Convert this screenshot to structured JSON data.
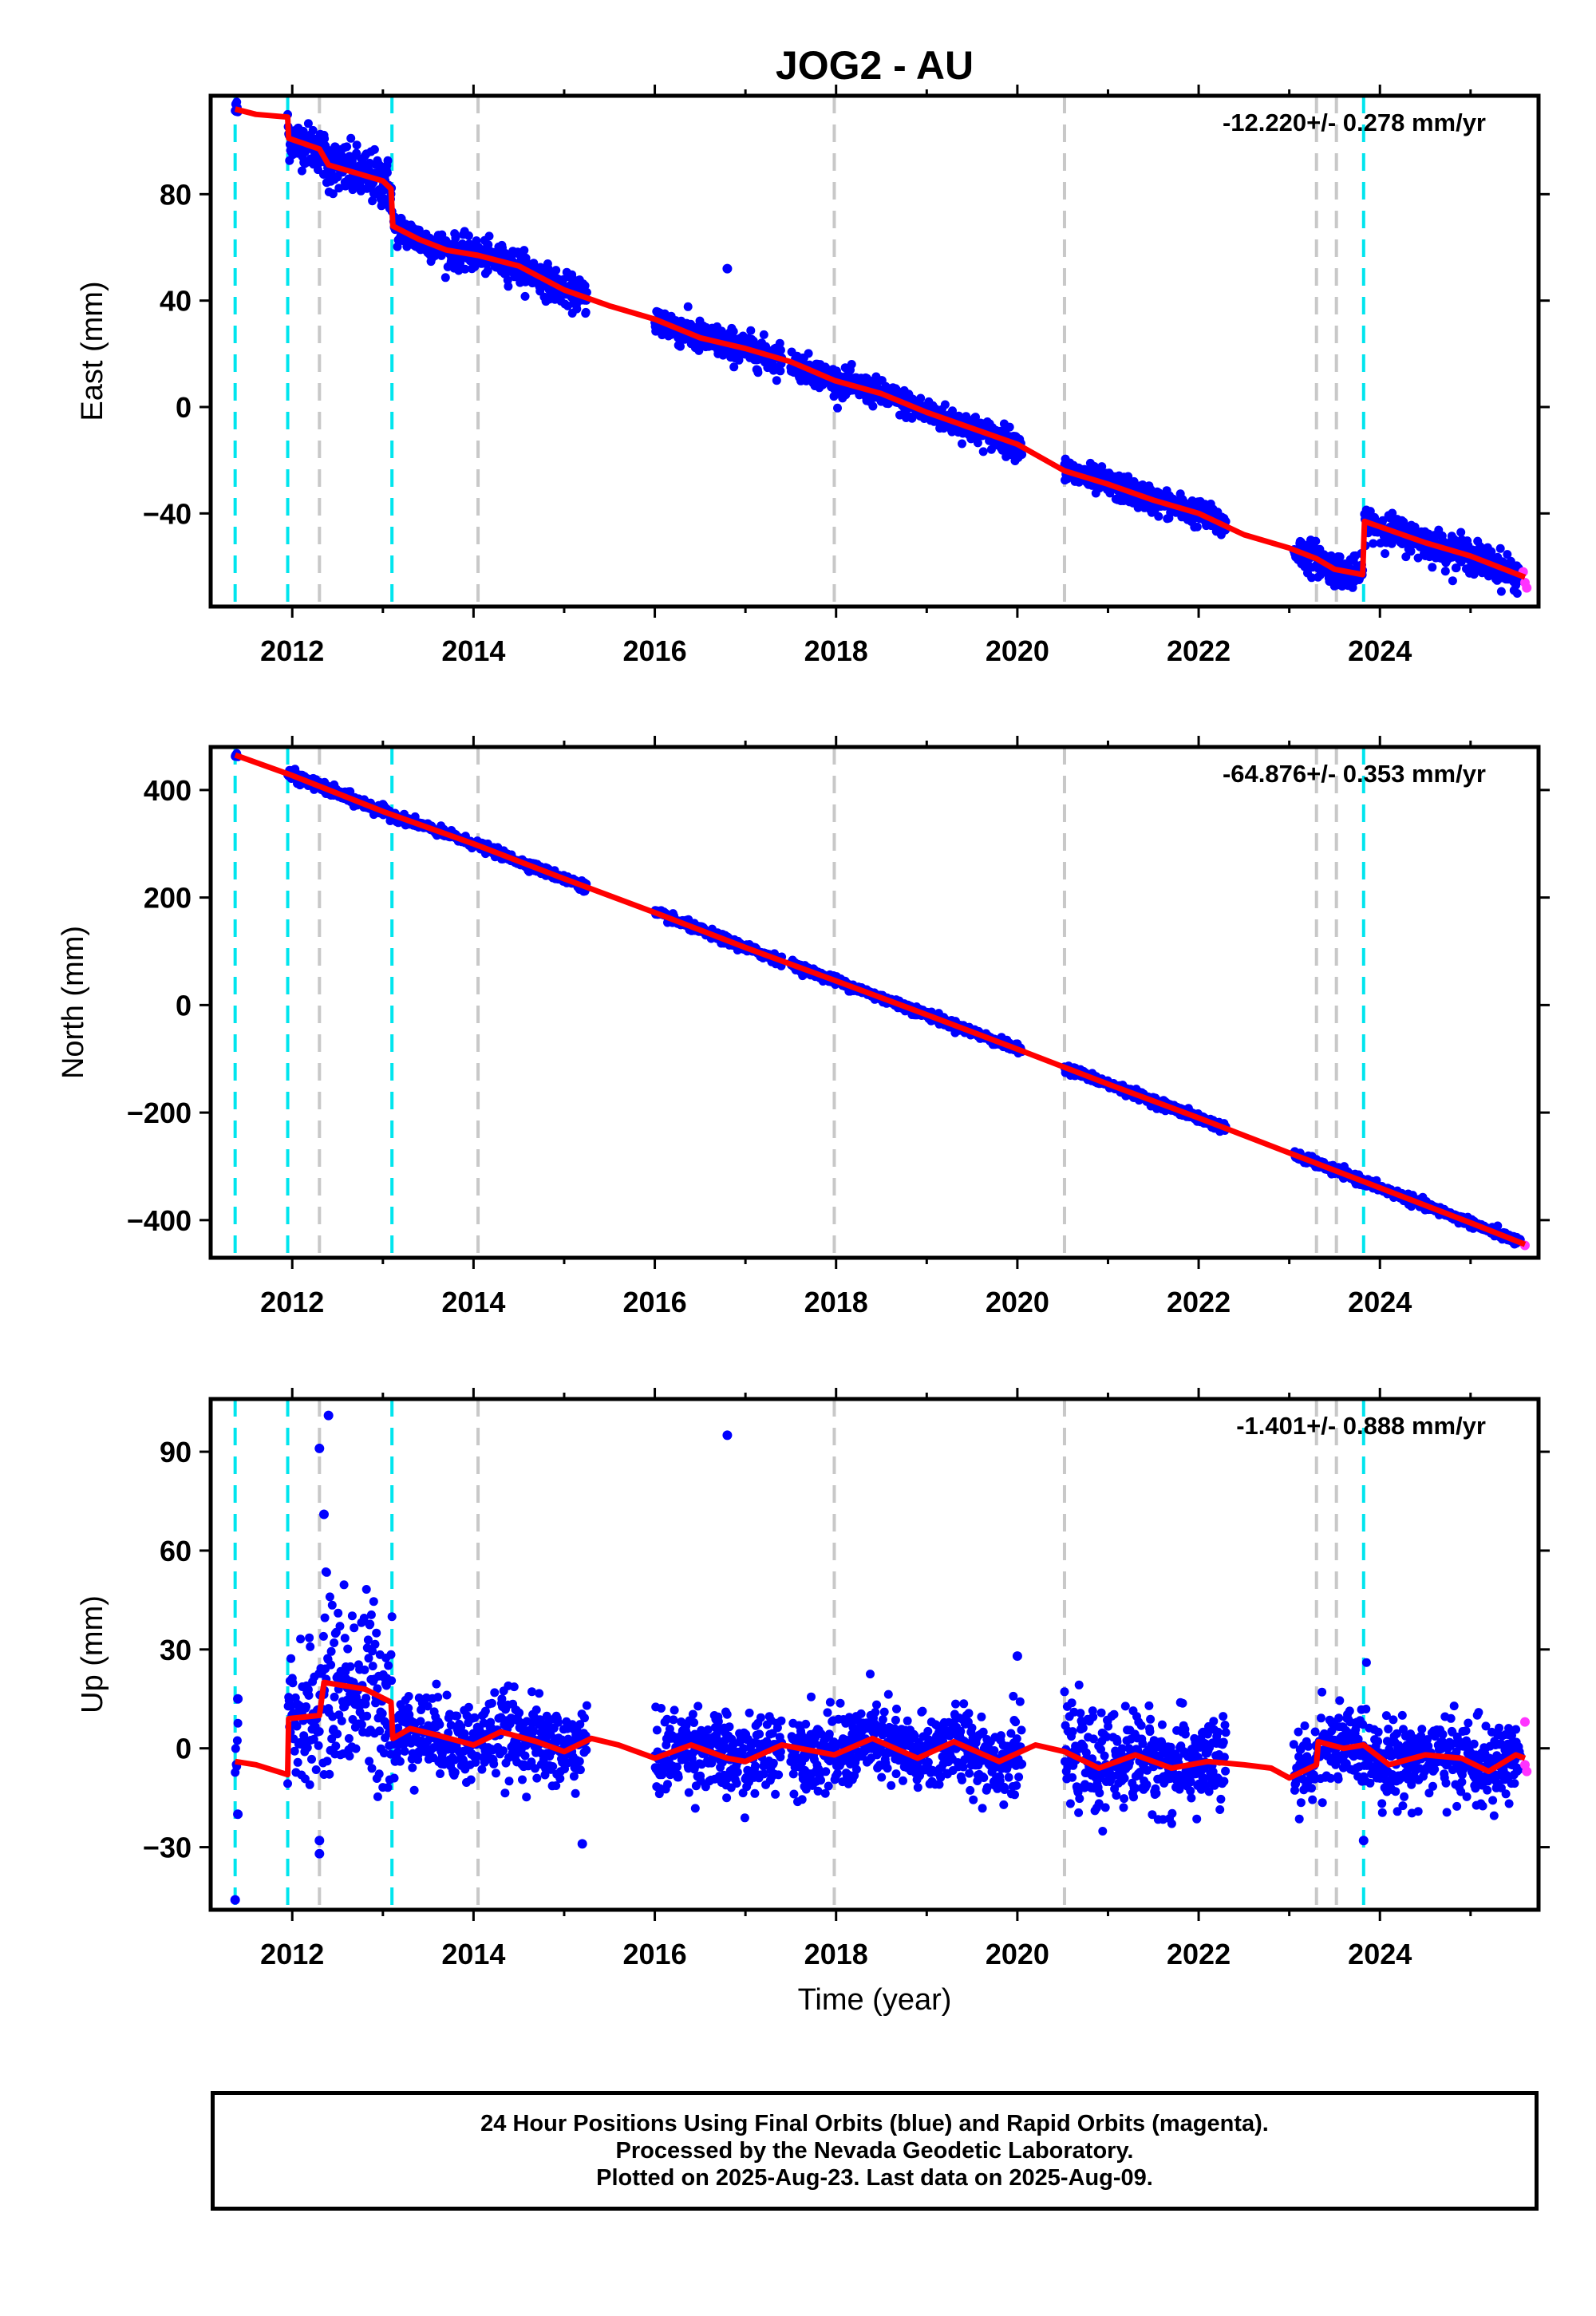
{
  "title": "JOG2 - AU",
  "xlabel": "Time (year)",
  "caption": {
    "line1": "24 Hour Positions Using Final Orbits (blue) and Rapid Orbits (magenta).",
    "line2": "Processed by the Nevada Geodetic Laboratory.",
    "line3": "Plotted on 2025-Aug-23. Last data on 2025-Aug-09."
  },
  "colors": {
    "final_orbits": "#0000ff",
    "rapid_orbits": "#ff33ff",
    "model": "#ff0000",
    "equipment_change": "#00e5ee",
    "other_event": "#c8c8c8"
  },
  "chart_data": [
    {
      "type": "scatter",
      "ylabel": "East (mm)",
      "rate_label": "-12.220+/- 0.278 mm/yr",
      "xlim": [
        2011.1,
        2025.75
      ],
      "ylim": [
        -75,
        117
      ],
      "yticks": [
        -40,
        0,
        40,
        80
      ],
      "xticks": [
        2012,
        2014,
        2016,
        2018,
        2020,
        2022,
        2024
      ],
      "cyan_lines": [
        2011.37,
        2011.95,
        2013.1,
        2023.82
      ],
      "gray_lines": [
        2012.3,
        2014.05,
        2017.98,
        2020.52,
        2023.3,
        2023.52
      ],
      "outliers": [
        [
          2016.8,
          52
        ]
      ],
      "model": [
        [
          2011.37,
          112
        ],
        [
          2011.6,
          110
        ],
        [
          2011.95,
          109
        ],
        [
          2011.96,
          101
        ],
        [
          2012.3,
          97
        ],
        [
          2012.4,
          91
        ],
        [
          2012.7,
          88
        ],
        [
          2013.0,
          85
        ],
        [
          2013.09,
          82
        ],
        [
          2013.11,
          68
        ],
        [
          2013.4,
          63
        ],
        [
          2013.7,
          59
        ],
        [
          2014.05,
          57
        ],
        [
          2014.5,
          53
        ],
        [
          2015.0,
          44
        ],
        [
          2015.5,
          38
        ],
        [
          2016.0,
          33
        ],
        [
          2016.5,
          26
        ],
        [
          2017.0,
          22
        ],
        [
          2017.5,
          17
        ],
        [
          2017.98,
          10
        ],
        [
          2018.5,
          5
        ],
        [
          2019.0,
          -2
        ],
        [
          2019.5,
          -8
        ],
        [
          2020.0,
          -14
        ],
        [
          2020.52,
          -24
        ],
        [
          2021.0,
          -29
        ],
        [
          2021.5,
          -35
        ],
        [
          2022.0,
          -40
        ],
        [
          2022.5,
          -48
        ],
        [
          2023.0,
          -53
        ],
        [
          2023.3,
          -57
        ],
        [
          2023.5,
          -61
        ],
        [
          2023.81,
          -63
        ],
        [
          2023.83,
          -43
        ],
        [
          2024.0,
          -45
        ],
        [
          2024.5,
          -51
        ],
        [
          2025.0,
          -56
        ],
        [
          2025.6,
          -64
        ]
      ],
      "segments": [
        {
          "start": 2011.37,
          "end": 2011.4,
          "spread": 2
        },
        {
          "start": 2011.95,
          "end": 2012.35,
          "spread": 4
        },
        {
          "start": 2012.35,
          "end": 2013.1,
          "spread": 5
        },
        {
          "start": 2013.12,
          "end": 2015.25,
          "spread": 3
        },
        {
          "start": 2016.0,
          "end": 2017.4,
          "spread": 3
        },
        {
          "start": 2017.5,
          "end": 2020.05,
          "spread": 2.5
        },
        {
          "start": 2020.52,
          "end": 2022.3,
          "spread": 2.5
        },
        {
          "start": 2023.05,
          "end": 2023.81,
          "spread": 3
        },
        {
          "start": 2023.83,
          "end": 2025.55,
          "spread": 3
        }
      ],
      "rapid": [
        [
          2025.58,
          -62
        ],
        [
          2025.6,
          -66
        ],
        [
          2025.62,
          -68
        ]
      ]
    },
    {
      "type": "scatter",
      "ylabel": "North (mm)",
      "rate_label": "-64.876+/- 0.353 mm/yr",
      "xlim": [
        2011.1,
        2025.75
      ],
      "ylim": [
        -470,
        480
      ],
      "yticks": [
        -400,
        -200,
        0,
        200,
        400
      ],
      "xticks": [
        2012,
        2014,
        2016,
        2018,
        2020,
        2022,
        2024
      ],
      "cyan_lines": [
        2011.37,
        2011.95,
        2013.1,
        2023.82
      ],
      "gray_lines": [
        2012.3,
        2014.05,
        2017.98,
        2020.52,
        2023.3,
        2023.52
      ],
      "outliers": [],
      "model": [
        [
          2011.37,
          465
        ],
        [
          2012.0,
          427
        ],
        [
          2013.0,
          360
        ],
        [
          2014.0,
          300
        ],
        [
          2015.0,
          235
        ],
        [
          2016.0,
          172
        ],
        [
          2017.0,
          107
        ],
        [
          2018.0,
          45
        ],
        [
          2019.0,
          -18
        ],
        [
          2020.0,
          -82
        ],
        [
          2021.0,
          -147
        ],
        [
          2022.0,
          -210
        ],
        [
          2023.0,
          -275
        ],
        [
          2024.0,
          -340
        ],
        [
          2025.0,
          -405
        ],
        [
          2025.6,
          -445
        ]
      ],
      "segments": [
        {
          "start": 2011.37,
          "end": 2011.4,
          "spread": 3
        },
        {
          "start": 2011.95,
          "end": 2013.1,
          "spread": 5
        },
        {
          "start": 2013.12,
          "end": 2015.25,
          "spread": 4
        },
        {
          "start": 2016.0,
          "end": 2017.4,
          "spread": 4
        },
        {
          "start": 2017.5,
          "end": 2020.05,
          "spread": 4
        },
        {
          "start": 2020.52,
          "end": 2022.3,
          "spread": 4
        },
        {
          "start": 2023.05,
          "end": 2025.55,
          "spread": 4
        }
      ],
      "rapid": [
        [
          2025.6,
          -447
        ]
      ]
    },
    {
      "type": "scatter",
      "ylabel": "Up (mm)",
      "rate_label": "-1.401+/- 0.888 mm/yr",
      "xlim": [
        2011.1,
        2025.75
      ],
      "ylim": [
        -49,
        106
      ],
      "yticks": [
        -30,
        0,
        30,
        60,
        90
      ],
      "xticks": [
        2012,
        2014,
        2016,
        2018,
        2020,
        2022,
        2024
      ],
      "cyan_lines": [
        2011.37,
        2011.95,
        2013.1,
        2023.82
      ],
      "gray_lines": [
        2012.3,
        2014.05,
        2017.98,
        2020.52,
        2023.3,
        2023.52
      ],
      "outliers": [
        [
          2016.8,
          95
        ],
        [
          2012.4,
          101
        ],
        [
          2012.3,
          91
        ],
        [
          2012.35,
          71
        ],
        [
          2011.37,
          -46
        ],
        [
          2011.4,
          -20
        ],
        [
          2011.4,
          15
        ],
        [
          2012.3,
          -32
        ],
        [
          2012.3,
          -28
        ],
        [
          2023.82,
          -28
        ],
        [
          2015.2,
          -29
        ],
        [
          2020.0,
          28
        ]
      ],
      "model": [
        [
          2011.37,
          -4
        ],
        [
          2011.6,
          -5
        ],
        [
          2011.95,
          -8
        ],
        [
          2011.96,
          9
        ],
        [
          2012.3,
          10
        ],
        [
          2012.35,
          20
        ],
        [
          2012.8,
          18
        ],
        [
          2013.09,
          14
        ],
        [
          2013.11,
          3
        ],
        [
          2013.3,
          6
        ],
        [
          2013.6,
          4
        ],
        [
          2014.0,
          1
        ],
        [
          2014.3,
          5
        ],
        [
          2014.7,
          2
        ],
        [
          2015.0,
          -1
        ],
        [
          2015.3,
          3
        ],
        [
          2015.6,
          1
        ],
        [
          2016.0,
          -3
        ],
        [
          2016.4,
          1
        ],
        [
          2016.8,
          -3
        ],
        [
          2017.0,
          -4
        ],
        [
          2017.4,
          1
        ],
        [
          2017.98,
          -2
        ],
        [
          2018.4,
          3
        ],
        [
          2018.9,
          -3
        ],
        [
          2019.3,
          2
        ],
        [
          2019.8,
          -4
        ],
        [
          2020.2,
          1
        ],
        [
          2020.52,
          -1
        ],
        [
          2020.9,
          -6
        ],
        [
          2021.3,
          -2
        ],
        [
          2021.7,
          -6
        ],
        [
          2022.1,
          -4
        ],
        [
          2022.5,
          -5
        ],
        [
          2022.8,
          -6
        ],
        [
          2023.0,
          -9
        ],
        [
          2023.3,
          -5
        ],
        [
          2023.32,
          2
        ],
        [
          2023.6,
          0
        ],
        [
          2023.82,
          1
        ],
        [
          2024.1,
          -5
        ],
        [
          2024.5,
          -2
        ],
        [
          2024.9,
          -3
        ],
        [
          2025.2,
          -7
        ],
        [
          2025.5,
          -2
        ],
        [
          2025.6,
          -3
        ]
      ],
      "segments": [
        {
          "start": 2011.37,
          "end": 2011.4,
          "spread": 6
        },
        {
          "start": 2011.95,
          "end": 2012.35,
          "spread": 10
        },
        {
          "start": 2012.35,
          "end": 2013.1,
          "spread": 14
        },
        {
          "start": 2013.12,
          "end": 2015.25,
          "spread": 6
        },
        {
          "start": 2016.0,
          "end": 2017.4,
          "spread": 6
        },
        {
          "start": 2017.5,
          "end": 2020.05,
          "spread": 6
        },
        {
          "start": 2020.52,
          "end": 2022.3,
          "spread": 7
        },
        {
          "start": 2023.05,
          "end": 2025.55,
          "spread": 6
        }
      ],
      "rapid": [
        [
          2025.6,
          8
        ],
        [
          2025.6,
          -5
        ],
        [
          2025.62,
          -7
        ]
      ]
    }
  ]
}
